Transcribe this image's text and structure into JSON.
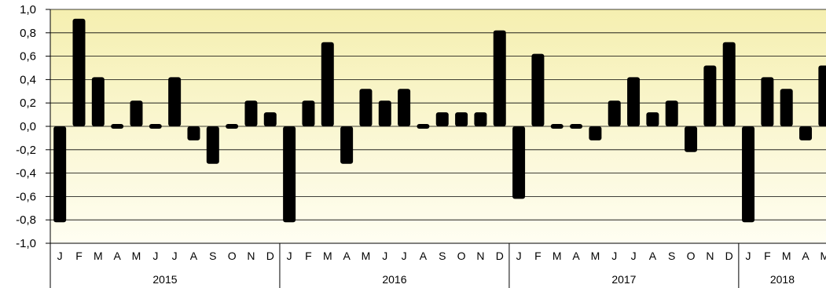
{
  "chart_data": {
    "type": "bar",
    "title": "",
    "xlabel": "",
    "ylabel": "",
    "ylim": [
      -1.0,
      1.0
    ],
    "y_ticks": [
      "1,0",
      "0,8",
      "0,6",
      "0,4",
      "0,2",
      "0,0",
      "-0,2",
      "-0,4",
      "-0,6",
      "-0,8",
      "-1,0"
    ],
    "y_tick_values": [
      1.0,
      0.8,
      0.6,
      0.4,
      0.2,
      0.0,
      -0.2,
      -0.4,
      -0.6,
      -0.8,
      -1.0
    ],
    "grid": true,
    "background_gradient": [
      "#f5efb0",
      "#fffef2"
    ],
    "bar_color": "#000000",
    "years": [
      {
        "label": "2015",
        "months": [
          "J",
          "F",
          "M",
          "A",
          "M",
          "J",
          "J",
          "A",
          "S",
          "O",
          "N",
          "D"
        ],
        "values": [
          -0.8,
          0.9,
          0.4,
          0.0,
          0.2,
          0.0,
          0.4,
          -0.1,
          -0.3,
          0.0,
          0.2,
          0.1
        ]
      },
      {
        "label": "2016",
        "months": [
          "J",
          "F",
          "M",
          "A",
          "M",
          "J",
          "J",
          "A",
          "S",
          "O",
          "N",
          "D"
        ],
        "values": [
          -0.8,
          0.2,
          0.7,
          -0.3,
          0.3,
          0.2,
          0.3,
          0.0,
          0.1,
          0.1,
          0.1,
          0.8
        ]
      },
      {
        "label": "2017",
        "months": [
          "J",
          "F",
          "M",
          "A",
          "M",
          "J",
          "J",
          "A",
          "S",
          "O",
          "N",
          "D"
        ],
        "values": [
          -0.6,
          0.6,
          0.0,
          0.0,
          -0.1,
          0.2,
          0.4,
          0.1,
          0.2,
          -0.2,
          0.5,
          0.7
        ]
      },
      {
        "label": "2018",
        "months": [
          "J",
          "F",
          "M",
          "A",
          "M"
        ],
        "values": [
          -0.8,
          0.4,
          0.3,
          -0.1,
          0.5
        ]
      }
    ]
  }
}
